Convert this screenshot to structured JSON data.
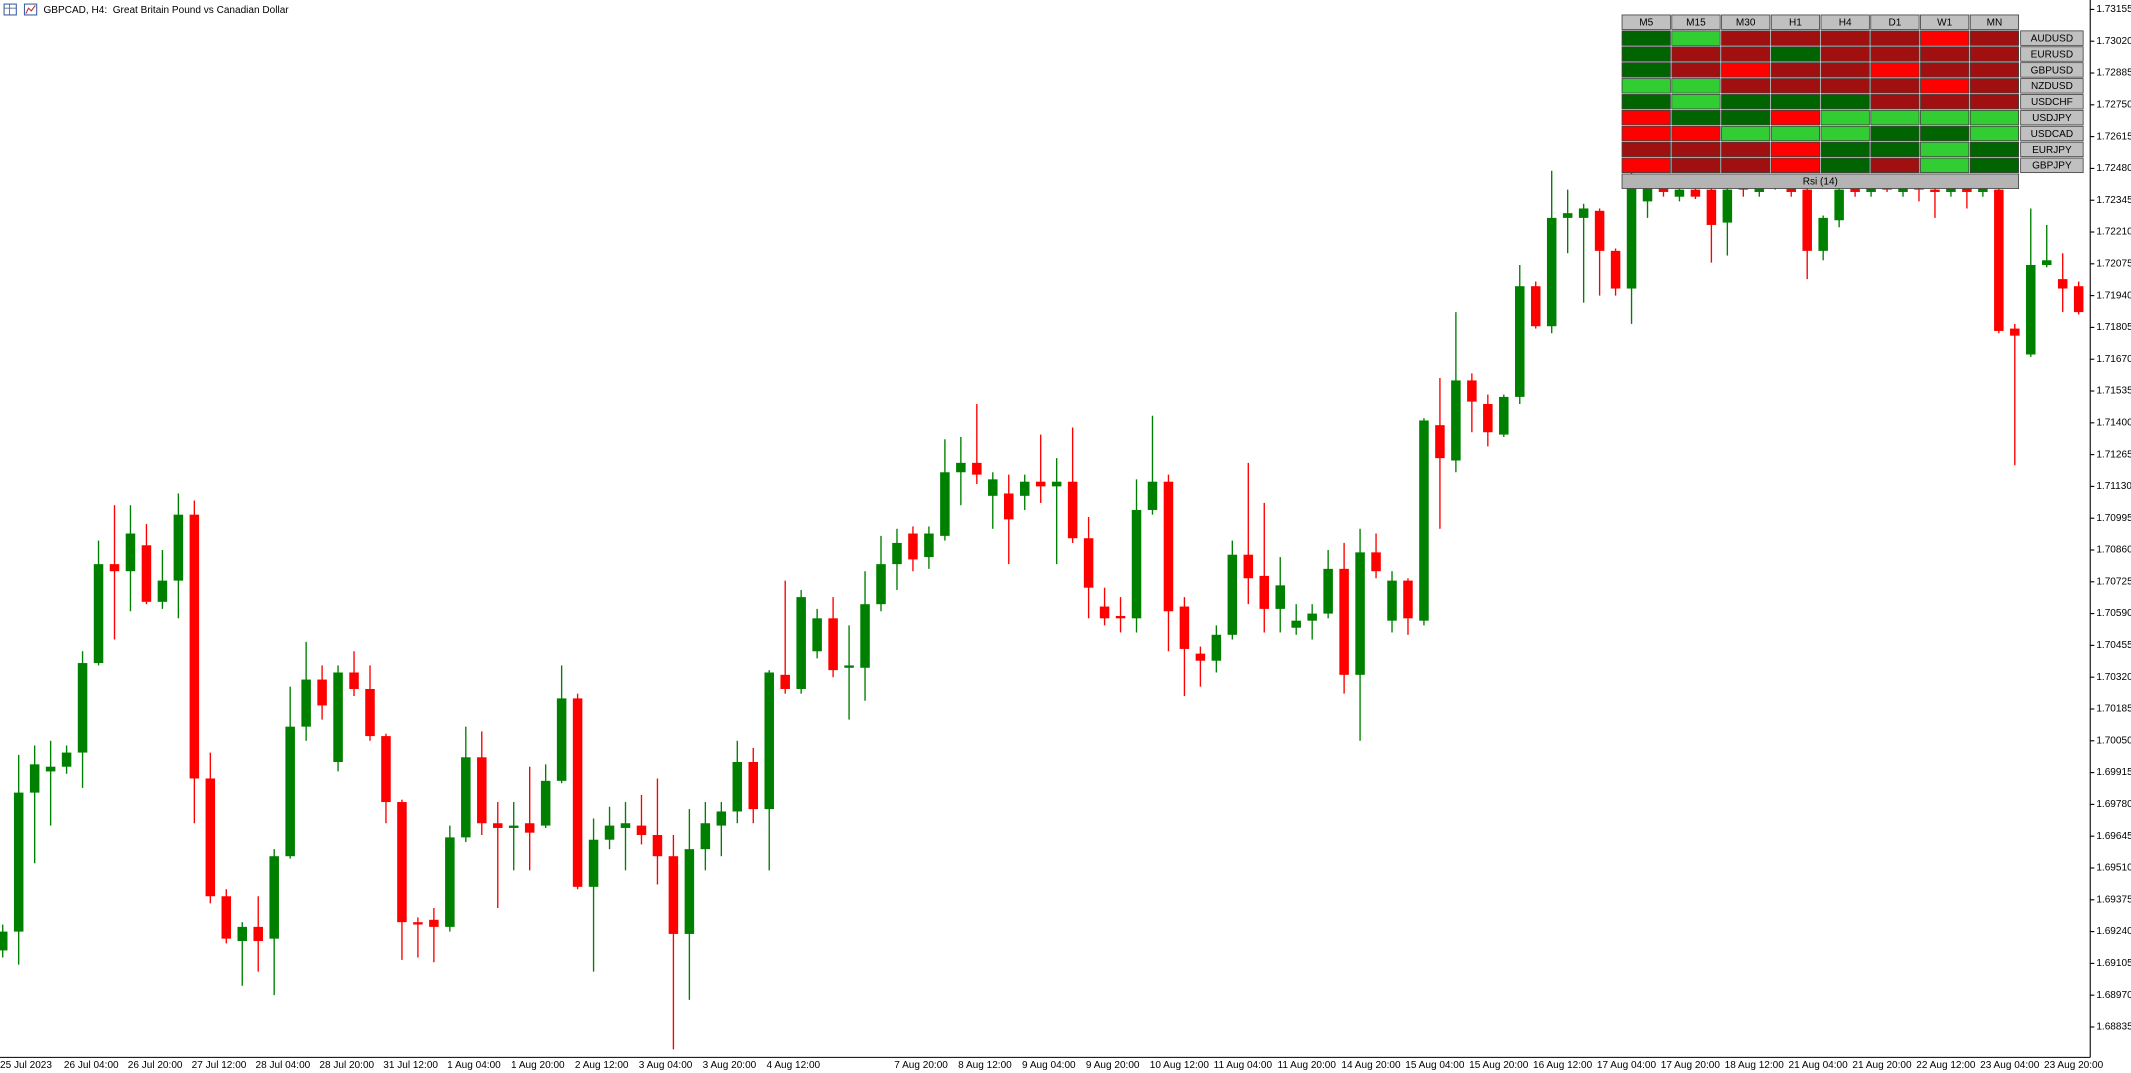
{
  "chart_data": {
    "type": "candlestick",
    "title": "GBPCAD, H4:  Great Britain Pound vs Canadian Dollar",
    "up_color": "#008000",
    "down_color": "#ff0000",
    "categories": [
      "25 Jul 2023",
      null,
      null,
      null,
      "26 Jul 04:00",
      null,
      null,
      null,
      "26 Jul 20:00",
      null,
      null,
      null,
      "27 Jul 12:00",
      null,
      null,
      null,
      "28 Jul 04:00",
      null,
      null,
      null,
      "28 Jul 20:00",
      null,
      null,
      null,
      "31 Jul 12:00",
      null,
      null,
      null,
      "1 Aug 04:00",
      null,
      null,
      null,
      "1 Aug 20:00",
      null,
      null,
      null,
      "2 Aug 12:00",
      null,
      null,
      null,
      "3 Aug 04:00",
      null,
      null,
      null,
      "3 Aug 20:00",
      null,
      null,
      null,
      "4 Aug 12:00",
      null,
      null,
      null,
      null,
      null,
      null,
      null,
      "7 Aug 20:00",
      null,
      null,
      null,
      "8 Aug 12:00",
      null,
      null,
      null,
      "9 Aug 04:00",
      null,
      null,
      null,
      "9 Aug 20:00",
      null,
      null,
      null,
      "10 Aug 12:00",
      null,
      null,
      null,
      "11 Aug 04:00",
      null,
      null,
      null,
      "11 Aug 20:00",
      null,
      null,
      null,
      "14 Aug 20:00",
      null,
      null,
      null,
      "15 Aug 04:00",
      null,
      null,
      null,
      "15 Aug 20:00",
      null,
      null,
      null,
      "16 Aug 12:00",
      null,
      null,
      null,
      "17 Aug 04:00",
      null,
      null,
      null,
      "17 Aug 20:00",
      null,
      null,
      null,
      "18 Aug 12:00",
      null,
      null,
      null,
      "21 Aug 04:00",
      null,
      null,
      null,
      "21 Aug 20:00",
      null,
      null,
      null,
      "22 Aug 12:00",
      null,
      null,
      null,
      "23 Aug 04:00",
      null,
      null,
      null,
      "23 Aug 20:00",
      null,
      null
    ],
    "open": [
      1.6916,
      1.6924,
      1.6983,
      1.6992,
      1.6994,
      1.7,
      1.7038,
      1.708,
      1.7077,
      1.7088,
      1.7064,
      1.7073,
      1.7101,
      1.6989,
      1.6939,
      1.692,
      1.6926,
      1.6921,
      1.6956,
      1.7011,
      1.7031,
      1.6996,
      1.7034,
      1.7027,
      1.7007,
      1.6979,
      1.6928,
      1.6929,
      1.6926,
      1.6964,
      1.6998,
      1.697,
      1.6968,
      1.697,
      1.6969,
      1.6988,
      1.7023,
      1.6943,
      1.6963,
      1.6968,
      1.6969,
      1.6965,
      1.6956,
      1.6923,
      1.6959,
      1.6969,
      1.6975,
      1.6996,
      1.6976,
      1.7033,
      1.7027,
      1.7043,
      1.7057,
      1.7036,
      1.7036,
      1.7063,
      1.708,
      1.7093,
      1.7083,
      1.7092,
      1.7119,
      1.7123,
      1.7109,
      1.711,
      1.7109,
      1.7115,
      1.7113,
      1.7115,
      1.7091,
      1.7062,
      1.7058,
      1.7057,
      1.7103,
      1.7115,
      1.7062,
      1.7042,
      1.7039,
      1.705,
      1.7084,
      1.7075,
      1.7061,
      1.7053,
      1.7056,
      1.7059,
      1.7078,
      1.7033,
      1.7085,
      1.7056,
      1.7073,
      1.7056,
      1.7139,
      1.7124,
      1.7158,
      1.7148,
      1.7135,
      1.7151,
      1.7198,
      1.7181,
      1.7227,
      1.7227,
      1.723,
      1.7213,
      1.7197,
      1.7234,
      1.724,
      1.7236,
      1.7239,
      1.7239,
      1.7225,
      1.7242,
      1.7238,
      1.7242,
      1.724,
      1.7239,
      1.7213,
      1.7226,
      1.724,
      1.7238,
      1.724,
      1.7238,
      1.7241,
      1.7239,
      1.7238,
      1.724,
      1.7238,
      1.7239,
      1.718,
      1.7169,
      1.7207,
      1.7201,
      1.7198
    ],
    "high": [
      1.6927,
      1.6999,
      1.7003,
      1.7005,
      1.7003,
      1.7043,
      1.709,
      1.7105,
      1.7105,
      1.7097,
      1.7086,
      1.711,
      1.7107,
      1.7,
      1.6942,
      1.6928,
      1.6939,
      1.6959,
      1.7028,
      1.7047,
      1.7037,
      1.7037,
      1.7043,
      1.7037,
      1.7008,
      1.698,
      1.693,
      1.6934,
      1.6969,
      1.7011,
      1.7009,
      1.6979,
      1.6979,
      1.6994,
      1.6995,
      1.7037,
      1.7025,
      1.6972,
      1.6977,
      1.6979,
      1.6982,
      1.6989,
      1.6965,
      1.6976,
      1.6979,
      1.6979,
      1.7005,
      1.7002,
      1.7035,
      1.7073,
      1.7069,
      1.7061,
      1.7066,
      1.7054,
      1.7077,
      1.7092,
      1.7095,
      1.7096,
      1.7096,
      1.7133,
      1.7134,
      1.7148,
      1.7119,
      1.7118,
      1.7118,
      1.7135,
      1.7125,
      1.7138,
      1.71,
      1.707,
      1.7066,
      1.7116,
      1.7143,
      1.7118,
      1.7066,
      1.7045,
      1.7054,
      1.709,
      1.7123,
      1.7106,
      1.7083,
      1.7063,
      1.7063,
      1.7086,
      1.7089,
      1.7095,
      1.7093,
      1.7077,
      1.7074,
      1.7142,
      1.7159,
      1.7187,
      1.7161,
      1.7152,
      1.7152,
      1.7207,
      1.72,
      1.7247,
      1.7239,
      1.7233,
      1.7231,
      1.7214,
      1.725,
      1.7245,
      1.7245,
      1.7242,
      1.7242,
      1.7242,
      1.7242,
      1.7245,
      1.7245,
      1.7245,
      1.7245,
      1.7242,
      1.7228,
      1.7242,
      1.7245,
      1.7245,
      1.7245,
      1.7245,
      1.7245,
      1.7245,
      1.7243,
      1.7245,
      1.7245,
      1.7245,
      1.7182,
      1.7231,
      1.7224,
      1.7212,
      1.72
    ],
    "low": [
      1.6913,
      1.691,
      1.6953,
      1.6969,
      1.6991,
      1.6985,
      1.7037,
      1.7048,
      1.706,
      1.7063,
      1.7061,
      1.7057,
      1.697,
      1.6936,
      1.6919,
      1.6901,
      1.6907,
      1.6897,
      1.6955,
      1.7005,
      1.7014,
      1.6992,
      1.7024,
      1.7005,
      1.697,
      1.6912,
      1.6913,
      1.6911,
      1.6924,
      1.6962,
      1.6965,
      1.6934,
      1.695,
      1.695,
      1.6968,
      1.6987,
      1.6942,
      1.6907,
      1.6959,
      1.695,
      1.6961,
      1.6944,
      1.6874,
      1.6895,
      1.695,
      1.6956,
      1.697,
      1.697,
      1.695,
      1.7025,
      1.7025,
      1.704,
      1.7032,
      1.7014,
      1.7022,
      1.706,
      1.7069,
      1.7077,
      1.7078,
      1.709,
      1.7105,
      1.7114,
      1.7095,
      1.708,
      1.7103,
      1.7106,
      1.708,
      1.7089,
      1.7057,
      1.7054,
      1.7051,
      1.7051,
      1.7101,
      1.7043,
      1.7024,
      1.7028,
      1.7034,
      1.7048,
      1.7063,
      1.7051,
      1.7051,
      1.705,
      1.7048,
      1.7057,
      1.7025,
      1.7005,
      1.7074,
      1.7051,
      1.705,
      1.7054,
      1.7095,
      1.7119,
      1.7136,
      1.713,
      1.7134,
      1.7148,
      1.718,
      1.7178,
      1.7212,
      1.7191,
      1.7194,
      1.7194,
      1.7182,
      1.7227,
      1.7236,
      1.7234,
      1.7235,
      1.7208,
      1.7211,
      1.7236,
      1.7236,
      1.7239,
      1.7236,
      1.7201,
      1.7209,
      1.7223,
      1.7236,
      1.7236,
      1.7238,
      1.7236,
      1.7234,
      1.7227,
      1.7236,
      1.7231,
      1.7236,
      1.7178,
      1.7122,
      1.7168,
      1.7206,
      1.7187,
      1.7186
    ],
    "close": [
      1.6924,
      1.6983,
      1.6995,
      1.6994,
      1.7,
      1.7038,
      1.708,
      1.7077,
      1.7093,
      1.7064,
      1.7073,
      1.7101,
      1.6989,
      1.6939,
      1.6921,
      1.6926,
      1.692,
      1.6956,
      1.7011,
      1.7031,
      1.702,
      1.7034,
      1.7027,
      1.7007,
      1.6979,
      1.6928,
      1.6927,
      1.6926,
      1.6964,
      1.6998,
      1.697,
      1.6968,
      1.6969,
      1.6966,
      1.6988,
      1.7023,
      1.6943,
      1.6963,
      1.6969,
      1.697,
      1.6965,
      1.6956,
      1.6923,
      1.6959,
      1.697,
      1.6975,
      1.6996,
      1.6976,
      1.7034,
      1.7027,
      1.7066,
      1.7057,
      1.7035,
      1.7037,
      1.7063,
      1.708,
      1.7089,
      1.7082,
      1.7093,
      1.7119,
      1.7123,
      1.7118,
      1.7116,
      1.7099,
      1.7115,
      1.7113,
      1.7115,
      1.7091,
      1.707,
      1.7057,
      1.7057,
      1.7103,
      1.7115,
      1.706,
      1.7044,
      1.7039,
      1.705,
      1.7084,
      1.7074,
      1.7061,
      1.7071,
      1.7056,
      1.7059,
      1.7078,
      1.7033,
      1.7085,
      1.7077,
      1.7073,
      1.7057,
      1.7141,
      1.7125,
      1.7158,
      1.7149,
      1.7136,
      1.7151,
      1.7198,
      1.7181,
      1.7227,
      1.7229,
      1.7231,
      1.7213,
      1.7197,
      1.7245,
      1.724,
      1.7238,
      1.7239,
      1.7236,
      1.7224,
      1.7239,
      1.7239,
      1.7242,
      1.724,
      1.7238,
      1.7213,
      1.7227,
      1.7239,
      1.7238,
      1.724,
      1.7239,
      1.7241,
      1.7239,
      1.7238,
      1.724,
      1.7238,
      1.724,
      1.7179,
      1.7177,
      1.7207,
      1.7209,
      1.7197,
      1.7187
    ],
    "ylim": [
      1.68706,
      1.73195
    ],
    "yticks": [
      1.73155,
      {
        "value": 1.7302,
        "label": "1.73020"
      },
      1.72885,
      {
        "value": 1.7275,
        "label": "1.72750"
      },
      1.72615,
      {
        "value": 1.7248,
        "label": "1.72480"
      },
      1.72345,
      {
        "value": 1.7221,
        "label": "1.72210"
      },
      1.72075,
      {
        "value": 1.7194,
        "label": "1.71940"
      },
      1.71805,
      {
        "value": 1.7167,
        "label": "1.71670"
      },
      1.71535,
      {
        "value": 1.714,
        "label": "1.71400"
      },
      1.71265,
      {
        "value": 1.7113,
        "label": "1.71130"
      },
      1.70995,
      {
        "value": 1.7086,
        "label": "1.70860"
      },
      1.70725,
      {
        "value": 1.7059,
        "label": "1.70590"
      },
      1.70455,
      {
        "value": 1.7032,
        "label": "1.70320"
      },
      1.70185,
      {
        "value": 1.7005,
        "label": "1.70050"
      },
      1.69915,
      {
        "value": 1.6978,
        "label": "1.69780"
      },
      1.69645,
      {
        "value": 1.6951,
        "label": "1.69510"
      },
      1.69375,
      {
        "value": 1.6924,
        "label": "1.69240"
      },
      1.69105,
      {
        "value": 1.6897,
        "label": "1.68970"
      },
      1.68835
    ],
    "panel": {
      "columns": [
        "M5",
        "M15",
        "M30",
        "H1",
        "H4",
        "D1",
        "W1",
        "MN"
      ],
      "rows": [
        {
          "symbol": "AUDUSD",
          "cells": [
            "#006400",
            "#32cd32",
            "#a01010",
            "#a01010",
            "#a01010",
            "#a01010",
            "#ff0000",
            "#a01010"
          ]
        },
        {
          "symbol": "EURUSD",
          "cells": [
            "#006400",
            "#a01010",
            "#a01010",
            "#006400",
            "#a01010",
            "#a01010",
            "#a01010",
            "#a01010"
          ]
        },
        {
          "symbol": "GBPUSD",
          "cells": [
            "#006400",
            "#a01010",
            "#ff0000",
            "#a01010",
            "#a01010",
            "#ff0000",
            "#a01010",
            "#a01010"
          ]
        },
        {
          "symbol": "NZDUSD",
          "cells": [
            "#32cd32",
            "#32cd32",
            "#a01010",
            "#a01010",
            "#a01010",
            "#a01010",
            "#ff0000",
            "#a01010"
          ]
        },
        {
          "symbol": "USDCHF",
          "cells": [
            "#006400",
            "#32cd32",
            "#006400",
            "#006400",
            "#006400",
            "#a01010",
            "#a01010",
            "#a01010"
          ]
        },
        {
          "symbol": "USDJPY",
          "cells": [
            "#ff0000",
            "#006400",
            "#006400",
            "#ff0000",
            "#32cd32",
            "#32cd32",
            "#32cd32",
            "#32cd32"
          ]
        },
        {
          "symbol": "USDCAD",
          "cells": [
            "#ff0000",
            "#ff0000",
            "#32cd32",
            "#32cd32",
            "#32cd32",
            "#006400",
            "#006400",
            "#32cd32"
          ]
        },
        {
          "symbol": "EURJPY",
          "cells": [
            "#a01010",
            "#a01010",
            "#a01010",
            "#ff0000",
            "#006400",
            "#006400",
            "#32cd32",
            "#006400"
          ]
        },
        {
          "symbol": "GBPJPY",
          "cells": [
            "#ff0000",
            "#a01010",
            "#a01010",
            "#ff0000",
            "#006400",
            "#a01010",
            "#32cd32",
            "#006400"
          ]
        }
      ],
      "footer": "Rsi (14)"
    }
  }
}
